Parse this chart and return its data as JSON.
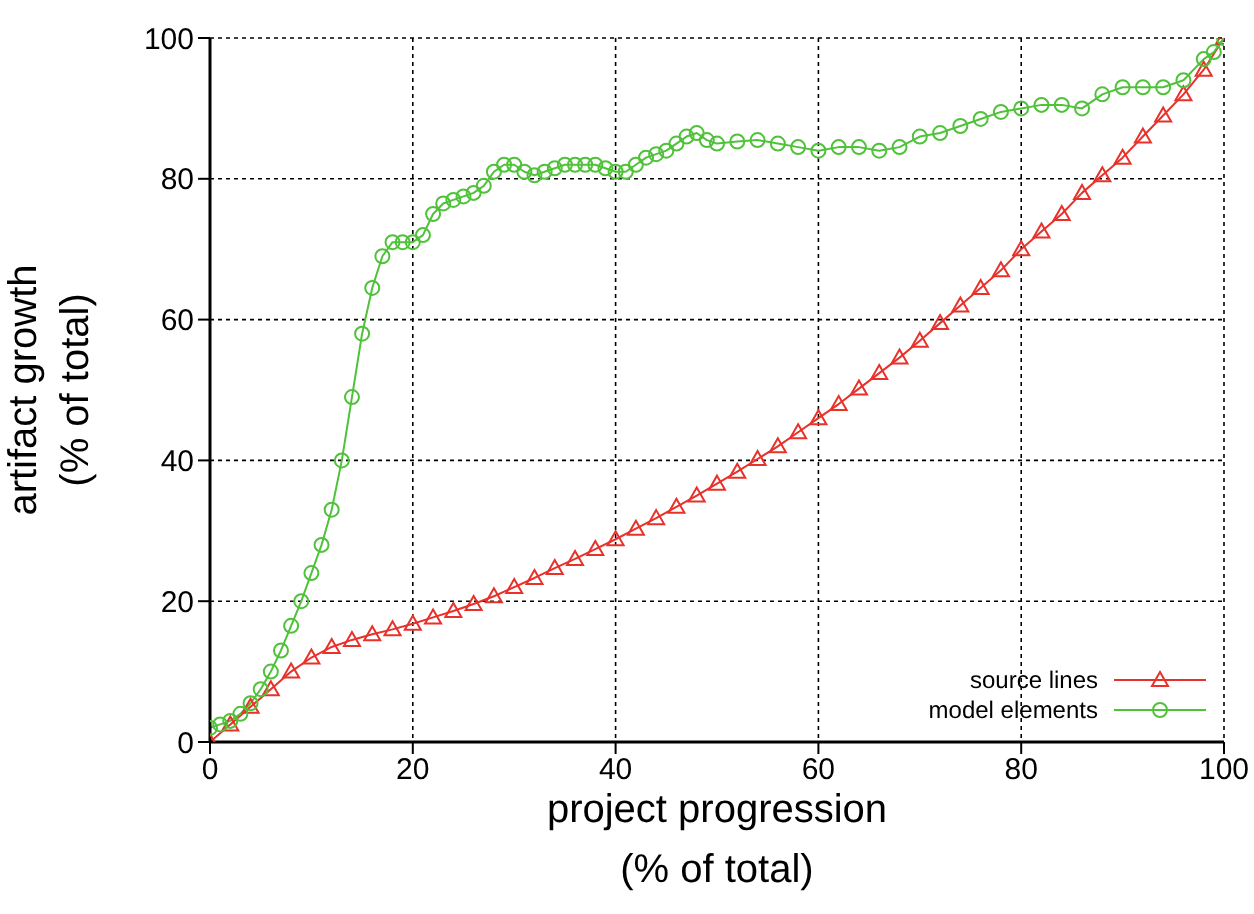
{
  "chart_data": {
    "type": "line",
    "xlabel": "project progression\n(% of total)",
    "ylabel": "artifact growth\n(% of total)",
    "xlim": [
      0,
      100
    ],
    "xticks": [
      0,
      20,
      40,
      60,
      80,
      100
    ],
    "ylim": [
      0,
      100
    ],
    "yticks": [
      0,
      20,
      40,
      60,
      80,
      100
    ],
    "grid": true,
    "legend": "bottom right",
    "line_style": "solid",
    "series": [
      {
        "name": "source lines",
        "color": "#e8312a",
        "marker": "triangle",
        "x": [
          0,
          2,
          4,
          6,
          8,
          10,
          12,
          14,
          16,
          18,
          20,
          22,
          24,
          26,
          28,
          30,
          32,
          34,
          36,
          38,
          40,
          42,
          44,
          46,
          48,
          50,
          52,
          54,
          56,
          58,
          60,
          62,
          64,
          66,
          68,
          70,
          72,
          74,
          76,
          78,
          80,
          82,
          84,
          86,
          88,
          90,
          92,
          94,
          96,
          98,
          100
        ],
        "values": [
          0,
          2.5,
          5,
          7.5,
          10,
          12,
          13.5,
          14.5,
          15.3,
          16,
          16.8,
          17.7,
          18.6,
          19.6,
          20.7,
          22,
          23.3,
          24.7,
          26,
          27.4,
          28.8,
          30.3,
          31.8,
          33.4,
          35,
          36.7,
          38.4,
          40.2,
          42,
          44,
          46,
          48,
          50.2,
          52.4,
          54.6,
          57,
          59.5,
          62,
          64.5,
          67,
          70,
          72.5,
          75,
          78,
          80.5,
          83,
          86,
          89,
          92,
          95.5,
          100
        ]
      },
      {
        "name": "model elements",
        "color": "#4fc23a",
        "marker": "circle",
        "x": [
          0,
          1,
          2,
          3,
          4,
          5,
          6,
          7,
          8,
          9,
          10,
          11,
          12,
          13,
          14,
          15,
          16,
          17,
          18,
          19,
          20,
          21,
          22,
          23,
          24,
          25,
          26,
          27,
          28,
          29,
          30,
          31,
          32,
          33,
          34,
          35,
          36,
          37,
          38,
          39,
          40,
          41,
          42,
          43,
          44,
          45,
          46,
          47,
          48,
          49,
          50,
          52,
          54,
          56,
          58,
          60,
          62,
          64,
          66,
          68,
          70,
          72,
          74,
          76,
          78,
          80,
          82,
          84,
          86,
          88,
          90,
          92,
          94,
          96,
          98,
          99,
          100
        ],
        "values": [
          2,
          2.5,
          3,
          4,
          5.5,
          7.5,
          10,
          13,
          16.5,
          20,
          24,
          28,
          33,
          40,
          49,
          58,
          64.5,
          69,
          71,
          71,
          71,
          72,
          75,
          76.5,
          77,
          77.5,
          78,
          79,
          81,
          82,
          82,
          81,
          80.5,
          81,
          81.5,
          82,
          82,
          82,
          82,
          81.5,
          81,
          81,
          82,
          83,
          83.5,
          84,
          85,
          86,
          86.5,
          85.5,
          85,
          85.3,
          85.5,
          85,
          84.5,
          84,
          84.5,
          84.5,
          84,
          84.5,
          86,
          86.5,
          87.5,
          88.5,
          89.5,
          90,
          90.5,
          90.5,
          90,
          92,
          93,
          93,
          93,
          94,
          97,
          98,
          100
        ]
      }
    ]
  }
}
